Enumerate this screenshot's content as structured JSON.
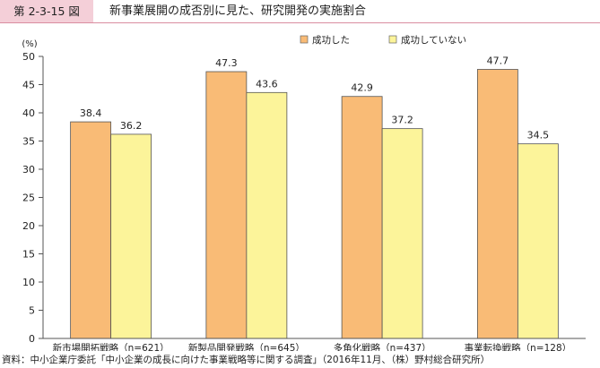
{
  "figure": {
    "number": "第 2-3-15 図",
    "title": "新事業展開の成否別に見た、研究開発の実施割合",
    "source": "資料：中小企業庁委託「中小企業の成長に向けた事業戦略等に関する調査」（2016年11月、（株）野村総合研究所）"
  },
  "chart_data": {
    "type": "bar",
    "ylabel": "(%)",
    "ylim": [
      0,
      50
    ],
    "yticks": [
      0,
      5,
      10,
      15,
      20,
      25,
      30,
      35,
      40,
      45,
      50
    ],
    "grid": false,
    "legend_position": "top-right",
    "categories": [
      "新市場開拓戦略（n=621）",
      "新製品開発戦略（n=645）",
      "多角化戦略（n=437）",
      "事業転換戦略（n=128）"
    ],
    "series": [
      {
        "name": "成功した",
        "color": "#f9bb76",
        "values": [
          38.4,
          47.3,
          42.9,
          47.7
        ],
        "labels": [
          "38.4",
          "47.3",
          "42.9",
          "47.7"
        ]
      },
      {
        "name": "成功していない",
        "color": "#fcf49a",
        "values": [
          36.2,
          43.6,
          37.2,
          34.5
        ],
        "labels": [
          "36.2",
          "43.6",
          "37.2",
          "34.5"
        ]
      }
    ]
  }
}
